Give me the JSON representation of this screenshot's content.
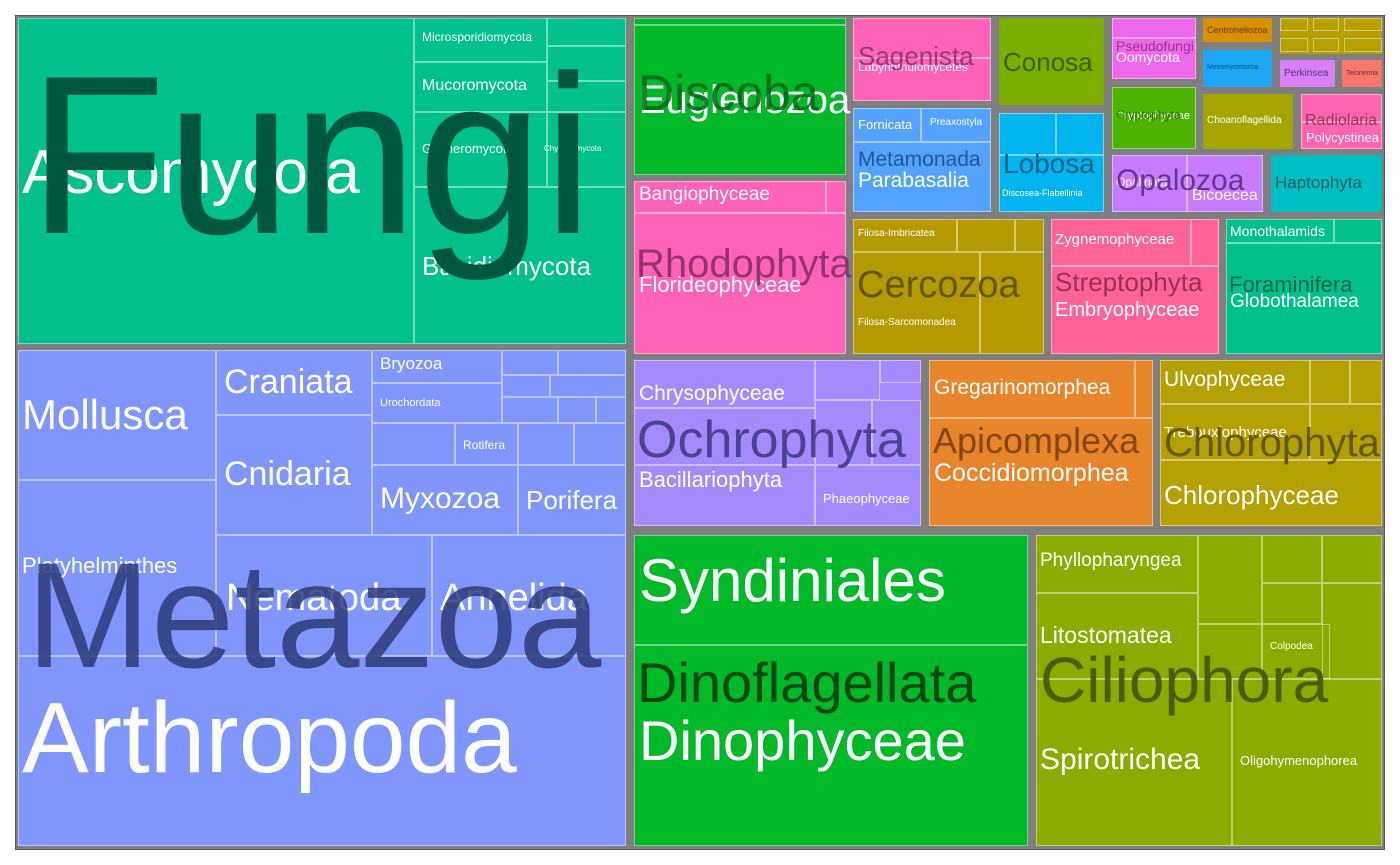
{
  "chart_data": {
    "type": "treemap",
    "title": "",
    "hierarchy": [
      "supergroup",
      "division",
      "class"
    ],
    "colors": {
      "Fungi": "#00c08b",
      "Metazoa": "#7f96fe",
      "Discoba": "#00b928",
      "Rhodophyta": "#ff63b6",
      "Ochrophyta": "#a58afe",
      "Dinoflagellata": "#00b928",
      "Cercozoa": "#b49a00",
      "Streptophyta": "#ff6398",
      "Foraminifera": "#00c08b",
      "Apicomplexa": "#e8842a",
      "Chlorophyta": "#b4a000",
      "Ciliophora": "#8cab00",
      "Sagenista": "#ff63b6",
      "Conosa": "#7cae00",
      "Metamonada": "#52a2fe",
      "Lobosa": "#00b4ef",
      "Pseudofungi": "#ef67eb",
      "Cryptophyta": "#4cb400",
      "Choanoflagellida": "#a3a500",
      "Radiolaria": "#ff65ac",
      "Opalozoa": "#c77cff",
      "Haptophyta": "#00bfc4",
      "Centroheliozoa": "#d89000",
      "Mesomycetozoa": "#1ea7f5",
      "Perkinsea": "#d780f8",
      "Telonemia": "#f8766d",
      "Other": "#b79f00"
    },
    "groups": [
      {
        "name": "Fungi",
        "children": [
          "Ascomycota",
          "Basidiomycota",
          "Microsporidiomycota",
          "Mucoromycota",
          "Glomeromycota",
          "Chytridiomycota"
        ]
      },
      {
        "name": "Metazoa",
        "children": [
          "Arthropoda",
          "Mollusca",
          "Platyhelminthes",
          "Craniata",
          "Cnidaria",
          "Nematoda",
          "Annelida",
          "Bryozoa",
          "Urochordata",
          "Rotifera",
          "Myxozoa",
          "Porifera"
        ]
      },
      {
        "name": "Discoba",
        "children": [
          "Euglenozoa"
        ]
      },
      {
        "name": "Rhodophyta",
        "children": [
          "Bangiophyceae",
          "Florideophyceae"
        ]
      },
      {
        "name": "Ochrophyta",
        "children": [
          "Chrysophyceae",
          "Bacillariophyta",
          "Phaeophyceae"
        ]
      },
      {
        "name": "Dinoflagellata",
        "children": [
          "Syndiniales",
          "Dinophyceae"
        ]
      },
      {
        "name": "Cercozoa",
        "children": [
          "Filosa-Imbricatea",
          "Filosa-Sarcomonadea"
        ]
      },
      {
        "name": "Streptophyta",
        "children": [
          "Zygnemophyceae",
          "Embryophyceae"
        ]
      },
      {
        "name": "Foraminifera",
        "children": [
          "Monothalamids",
          "Globothalamea"
        ]
      },
      {
        "name": "Apicomplexa",
        "children": [
          "Gregarinomorphea",
          "Coccidiomorphea"
        ]
      },
      {
        "name": "Chlorophyta",
        "children": [
          "Ulvophyceae",
          "Trebouxiophyceae",
          "Chlorophyceae"
        ]
      },
      {
        "name": "Ciliophora",
        "children": [
          "Phyllopharyngea",
          "Litostomatea",
          "Colpodea",
          "Spirotrichea",
          "Oligohymenophorea"
        ]
      },
      {
        "name": "Sagenista",
        "children": [
          "Labyrinthulomycetes"
        ]
      },
      {
        "name": "Conosa",
        "children": []
      },
      {
        "name": "Metamonada",
        "children": [
          "Fornicata",
          "Preaxostyla",
          "Parabasalia"
        ]
      },
      {
        "name": "Lobosa",
        "children": [
          "Discosea-Flabellinia"
        ]
      },
      {
        "name": "Pseudofungi",
        "children": [
          "Oomycota"
        ]
      },
      {
        "name": "Cryptophyta",
        "children": [
          "Cryptophyceae"
        ]
      },
      {
        "name": "Choanoflagellida",
        "children": []
      },
      {
        "name": "Radiolaria",
        "children": [
          "Polycystinea"
        ]
      },
      {
        "name": "Opalozoa",
        "children": [
          "Opalinata",
          "Bicoecea"
        ]
      },
      {
        "name": "Haptophyta",
        "children": []
      },
      {
        "name": "Centroheliozoa",
        "children": []
      },
      {
        "name": "Mesomycetozoa",
        "children": []
      },
      {
        "name": "Perkinsea",
        "children": []
      },
      {
        "name": "Telonemia",
        "children": []
      }
    ]
  }
}
